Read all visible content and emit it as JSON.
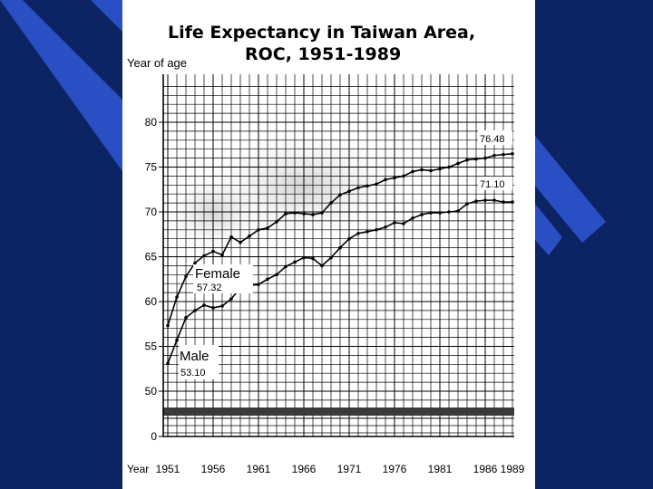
{
  "colors": {
    "background": "#0c2463",
    "stripe": "#2a4fc4",
    "card": "#ffffff",
    "ink": "#000000"
  },
  "chart_data": {
    "type": "line",
    "title_line1": "Life Expectancy in Taiwan Area,",
    "title_line2": "ROC, 1951-1989",
    "ylabel": "Year of age",
    "xlabel": "Year",
    "x_ticks": [
      "1951",
      "1956",
      "1961",
      "1966",
      "1971",
      "1976",
      "1981",
      "1986",
      "1989"
    ],
    "y_ticks": [
      "80",
      "75",
      "70",
      "65",
      "60",
      "55",
      "50",
      "0"
    ],
    "ylim": [
      45,
      85
    ],
    "xlim": [
      1951,
      1989
    ],
    "y_axis_break": true,
    "grid": true,
    "x": [
      1951,
      1952,
      1953,
      1954,
      1955,
      1956,
      1957,
      1958,
      1959,
      1960,
      1961,
      1962,
      1963,
      1964,
      1965,
      1966,
      1967,
      1968,
      1969,
      1970,
      1971,
      1972,
      1973,
      1974,
      1975,
      1976,
      1977,
      1978,
      1979,
      1980,
      1981,
      1982,
      1983,
      1984,
      1985,
      1986,
      1987,
      1988,
      1989
    ],
    "series": [
      {
        "name": "Female",
        "start_label": "57.32",
        "end_label": "76.48",
        "values": [
          57.32,
          60.5,
          62.8,
          64.3,
          65.1,
          65.6,
          65.2,
          67.2,
          66.6,
          67.3,
          68.0,
          68.2,
          68.9,
          69.8,
          69.9,
          69.8,
          69.7,
          69.9,
          71.0,
          71.9,
          72.3,
          72.7,
          72.9,
          73.1,
          73.6,
          73.8,
          74.0,
          74.5,
          74.7,
          74.6,
          74.8,
          75.0,
          75.4,
          75.8,
          75.9,
          76.0,
          76.3,
          76.4,
          76.48
        ]
      },
      {
        "name": "Male",
        "start_label": "53.10",
        "end_label": "71.10",
        "values": [
          53.1,
          55.7,
          58.2,
          59.0,
          59.6,
          59.3,
          59.5,
          60.3,
          61.5,
          61.8,
          61.9,
          62.5,
          63.0,
          63.9,
          64.4,
          64.9,
          64.8,
          64.0,
          64.9,
          66.0,
          67.0,
          67.6,
          67.8,
          68.0,
          68.3,
          68.8,
          68.7,
          69.3,
          69.7,
          69.9,
          69.9,
          70.0,
          70.1,
          70.9,
          71.2,
          71.3,
          71.3,
          71.1,
          71.1
        ]
      }
    ]
  }
}
